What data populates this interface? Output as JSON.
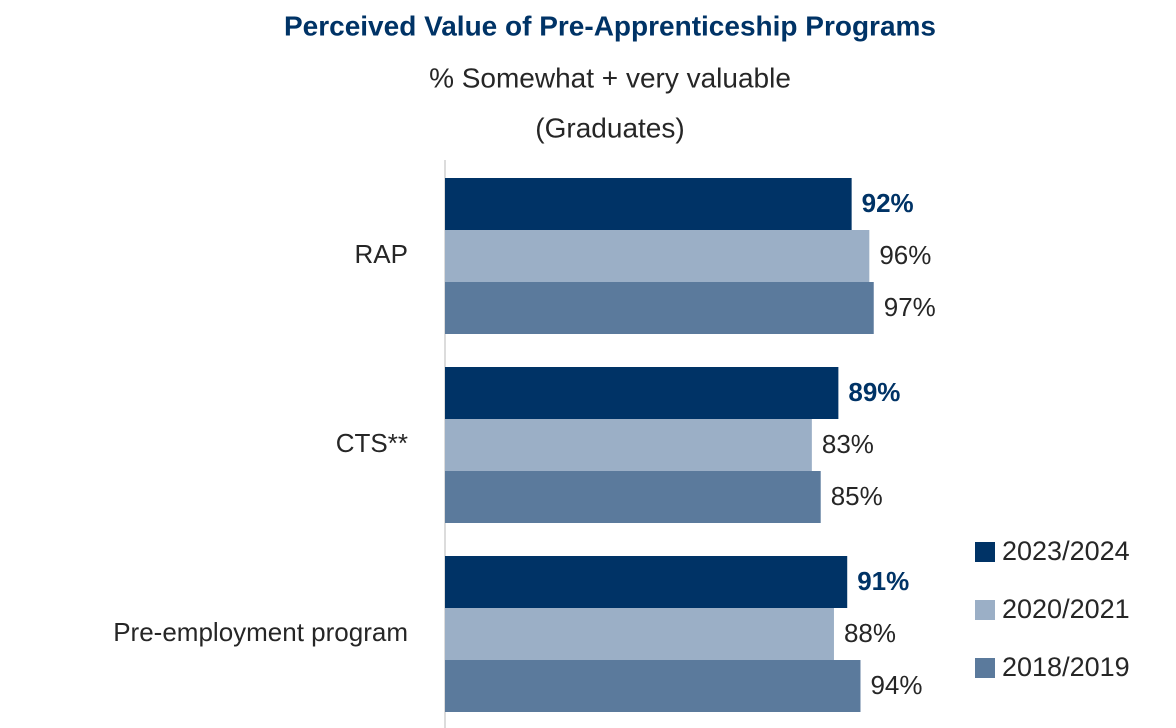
{
  "chart_data": {
    "type": "hbar",
    "title": "Perceived Value of Pre-Apprenticeship Programs",
    "subtitle": [
      "% Somewhat + very valuable",
      "(Graduates)"
    ],
    "categories": [
      "RAP",
      "CTS**",
      "Pre-employment program"
    ],
    "series": [
      {
        "name": "2023/2024",
        "color": "#003366",
        "values": [
          92,
          89,
          91
        ],
        "value_labels": [
          "92%",
          "89%",
          "91%"
        ]
      },
      {
        "name": "2020/2021",
        "color": "#9bafc6",
        "values": [
          96,
          83,
          88
        ],
        "value_labels": [
          "96%",
          "83%",
          "88%"
        ]
      },
      {
        "name": "2018/2019",
        "color": "#5b7a9c",
        "values": [
          97,
          85,
          94
        ],
        "value_labels": [
          "97%",
          "85%",
          "94%"
        ]
      }
    ],
    "xlim": [
      0,
      100
    ],
    "legend": "lower right"
  }
}
